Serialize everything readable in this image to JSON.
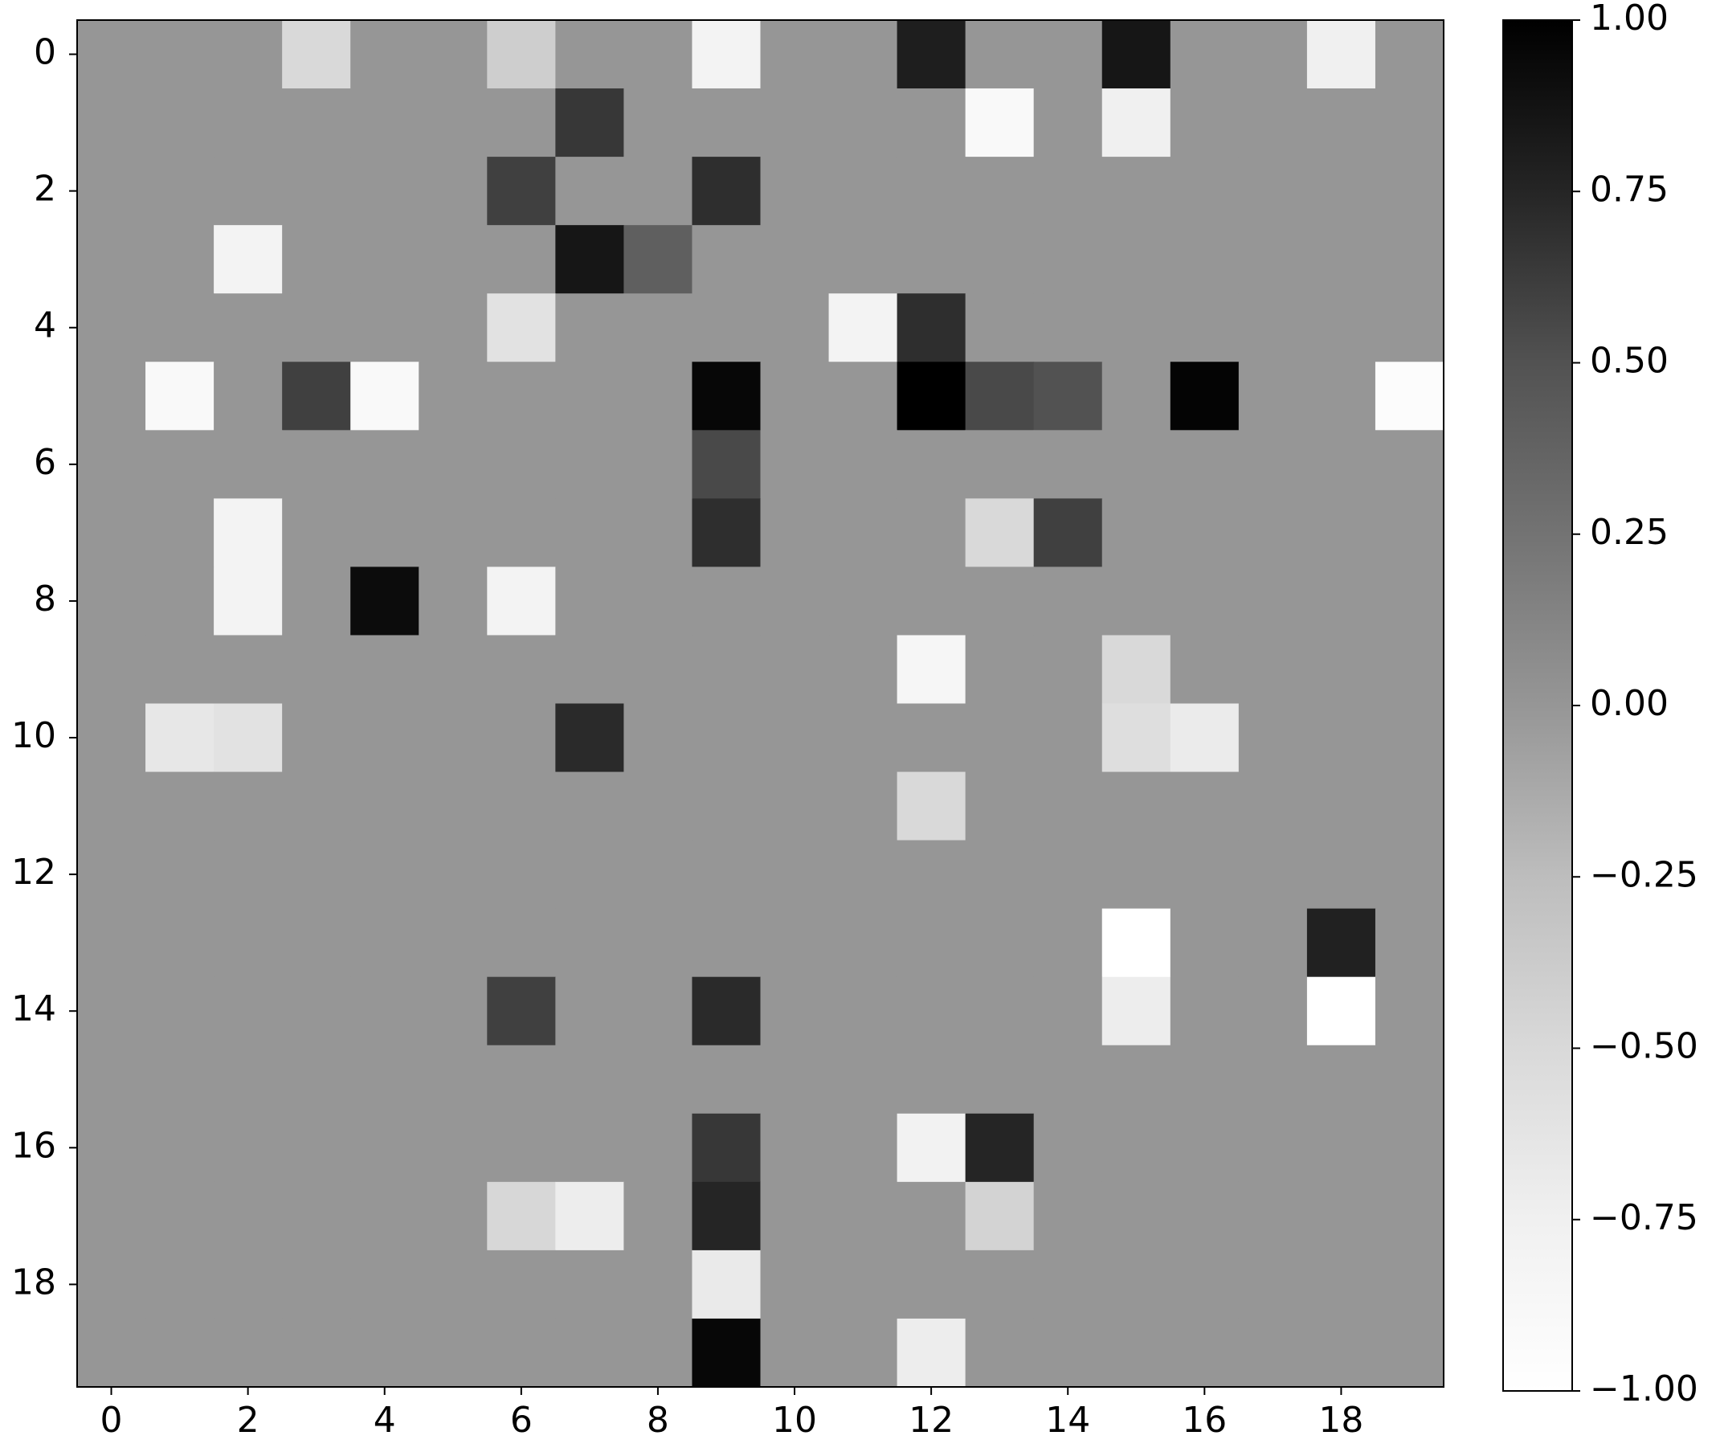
{
  "chart_data": {
    "type": "heatmap",
    "colormap": "Greys",
    "xlim": [
      -0.5,
      19.5
    ],
    "ylim": [
      19.5,
      -0.5
    ],
    "xticks": [
      0,
      2,
      4,
      6,
      8,
      10,
      12,
      14,
      16,
      18
    ],
    "yticks": [
      0,
      2,
      4,
      6,
      8,
      10,
      12,
      14,
      16,
      18
    ],
    "zlim": [
      -1,
      1
    ],
    "zticks": [
      {
        "value": -1,
        "label": "−1.00"
      },
      {
        "value": -0.75,
        "label": "−0.75"
      },
      {
        "value": -0.5,
        "label": "−0.50"
      },
      {
        "value": -0.25,
        "label": "−0.25"
      },
      {
        "value": 0,
        "label": "0.00"
      },
      {
        "value": 0.25,
        "label": "0.25"
      },
      {
        "value": 0.5,
        "label": "0.50"
      },
      {
        "value": 0.75,
        "label": "0.75"
      },
      {
        "value": 1,
        "label": "1.00"
      }
    ],
    "z": [
      [
        0,
        0,
        0,
        -0.5,
        0,
        0,
        -0.4,
        0,
        0,
        -0.8,
        0,
        0,
        0.8,
        0,
        0,
        0.85,
        0,
        0,
        -0.75,
        0
      ],
      [
        0,
        0,
        0,
        0,
        0,
        0,
        0,
        0.65,
        0,
        0,
        0,
        0,
        0,
        -0.9,
        0,
        -0.75,
        0,
        0,
        0,
        0
      ],
      [
        0,
        0,
        0,
        0,
        0,
        0,
        0.6,
        0,
        0,
        0.7,
        0,
        0,
        0,
        0,
        0,
        0,
        0,
        0,
        0,
        0
      ],
      [
        0,
        0,
        -0.8,
        0,
        0,
        0,
        0,
        0.85,
        0.4,
        0,
        0,
        0,
        0,
        0,
        0,
        0,
        0,
        0,
        0,
        0
      ],
      [
        0,
        0,
        0,
        0,
        0,
        0,
        -0.6,
        0,
        0,
        0,
        0,
        -0.8,
        0.7,
        0,
        0,
        0,
        0,
        0,
        0,
        0
      ],
      [
        0,
        -0.9,
        0,
        0.6,
        -0.9,
        0,
        0,
        0,
        0,
        0.95,
        0,
        0,
        1,
        0.55,
        0.5,
        0,
        0.97,
        0,
        0,
        -0.95
      ],
      [
        0,
        0,
        0,
        0,
        0,
        0,
        0,
        0,
        0,
        0.55,
        0,
        0,
        0,
        0,
        0,
        0,
        0,
        0,
        0,
        0
      ],
      [
        0,
        0,
        -0.8,
        0,
        0,
        0,
        0,
        0,
        0,
        0.7,
        0,
        0,
        0,
        -0.5,
        0.6,
        0,
        0,
        0,
        0,
        0
      ],
      [
        0,
        0,
        -0.8,
        0,
        0.92,
        0,
        -0.8,
        0,
        0,
        0,
        0,
        0,
        0,
        0,
        0,
        0,
        0,
        0,
        0,
        0
      ],
      [
        0,
        0,
        0,
        0,
        0,
        0,
        0,
        0,
        0,
        0,
        0,
        0,
        -0.85,
        0,
        0,
        -0.5,
        0,
        0,
        0,
        0
      ],
      [
        0,
        -0.65,
        -0.6,
        0,
        0,
        0,
        0,
        0.72,
        0,
        0,
        0,
        0,
        0,
        0,
        0,
        -0.55,
        -0.7,
        0,
        0,
        0
      ],
      [
        0,
        0,
        0,
        0,
        0,
        0,
        0,
        0,
        0,
        0,
        0,
        0,
        -0.5,
        0,
        0,
        0,
        0,
        0,
        0,
        0
      ],
      [
        0,
        0,
        0,
        0,
        0,
        0,
        0,
        0,
        0,
        0,
        0,
        0,
        0,
        0,
        0,
        0,
        0,
        0,
        0,
        0
      ],
      [
        0,
        0,
        0,
        0,
        0,
        0,
        0,
        0,
        0,
        0,
        0,
        0,
        0,
        0,
        0,
        -1,
        0,
        0,
        0.78,
        0
      ],
      [
        0,
        0,
        0,
        0,
        0,
        0,
        0.6,
        0,
        0,
        0.72,
        0,
        0,
        0,
        0,
        0,
        -0.72,
        0,
        0,
        -1,
        0
      ],
      [
        0,
        0,
        0,
        0,
        0,
        0,
        0,
        0,
        0,
        0,
        0,
        0,
        0,
        0,
        0,
        0,
        0,
        0,
        0,
        0
      ],
      [
        0,
        0,
        0,
        0,
        0,
        0,
        0,
        0,
        0,
        0.65,
        0,
        0,
        -0.78,
        0.75,
        0,
        0,
        0,
        0,
        0,
        0
      ],
      [
        0,
        0,
        0,
        0,
        0,
        0,
        -0.48,
        -0.72,
        0,
        0.75,
        0,
        0,
        0,
        -0.45,
        0,
        0,
        0,
        0,
        0,
        0
      ],
      [
        0,
        0,
        0,
        0,
        0,
        0,
        0,
        0,
        0,
        -0.68,
        0,
        0,
        0,
        0,
        0,
        0,
        0,
        0,
        0,
        0
      ],
      [
        0,
        0,
        0,
        0,
        0,
        0,
        0,
        0,
        0,
        0.95,
        0,
        0,
        -0.72,
        0,
        0,
        0,
        0,
        0,
        0,
        0
      ]
    ]
  }
}
